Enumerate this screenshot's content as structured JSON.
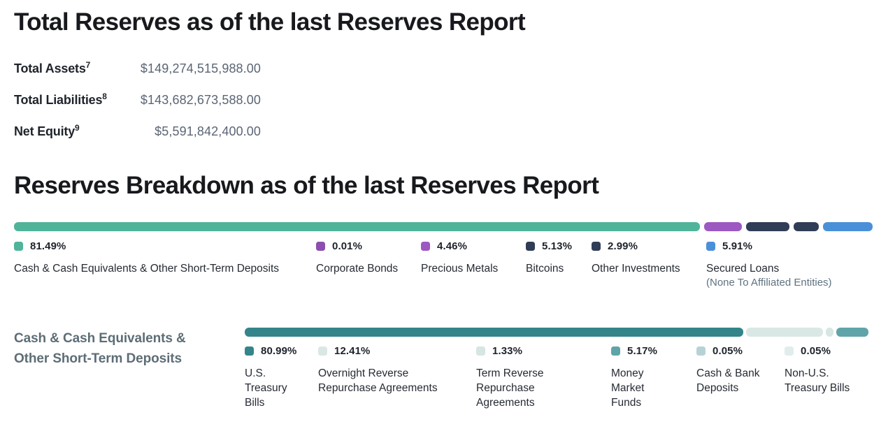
{
  "headings": {
    "total_reserves": "Total Reserves as of the last Reserves Report",
    "reserves_breakdown": "Reserves Breakdown as of the last Reserves Report"
  },
  "totals": {
    "rows": [
      {
        "label": "Total Assets",
        "sup": "7",
        "value": "$149,274,515,988.00"
      },
      {
        "label": "Total Liabilities",
        "sup": "8",
        "value": "$143,682,673,588.00"
      },
      {
        "label": "Net Equity",
        "sup": "9",
        "value": "$5,591,842,400.00"
      }
    ]
  },
  "section2": {
    "label_line1": "Cash & Cash Equivalents &",
    "label_line2": "Other Short-Term Deposits"
  },
  "chart_data": [
    {
      "type": "bar",
      "variant": "horizontal-stacked",
      "title": "Reserves Breakdown as of the last Reserves Report",
      "unit": "percent",
      "total": 100,
      "series": [
        {
          "name": "Cash & Cash Equivalents & Other Short-Term Deposits",
          "value": 81.49,
          "color": "#4fb49a",
          "sub": ""
        },
        {
          "name": "Corporate Bonds",
          "value": 0.01,
          "color": "#8d4fae",
          "sub": ""
        },
        {
          "name": "Precious Metals",
          "value": 4.46,
          "color": "#9c59c2",
          "sub": ""
        },
        {
          "name": "Bitcoins",
          "value": 5.13,
          "color": "#2f3e56",
          "sub": ""
        },
        {
          "name": "Other Investments",
          "value": 2.99,
          "color": "#2f3e56",
          "sub": ""
        },
        {
          "name": "Secured Loans",
          "value": 5.91,
          "color": "#4a90d8",
          "sub": "(None To Affiliated Entities)"
        }
      ]
    },
    {
      "type": "bar",
      "variant": "horizontal-stacked",
      "title": "Cash & Cash Equivalents & Other Short-Term Deposits",
      "unit": "percent",
      "total": 100,
      "series": [
        {
          "name": "U.S. Treasury Bills",
          "value": 80.99,
          "color": "#33858a",
          "sub": ""
        },
        {
          "name": "Overnight Reverse Repurchase Agreements",
          "value": 12.41,
          "color": "#d9e8e5",
          "sub": ""
        },
        {
          "name": "Term Reverse Repurchase Agreements",
          "value": 1.33,
          "color": "#d5e6e3",
          "sub": ""
        },
        {
          "name": "Money Market Funds",
          "value": 5.17,
          "color": "#5fa4a8",
          "sub": ""
        },
        {
          "name": "Cash & Bank Deposits",
          "value": 0.05,
          "color": "#b7d2d7",
          "sub": ""
        },
        {
          "name": "Non-U.S. Treasury Bills",
          "value": 0.05,
          "color": "#e0edec",
          "sub": ""
        }
      ]
    }
  ]
}
